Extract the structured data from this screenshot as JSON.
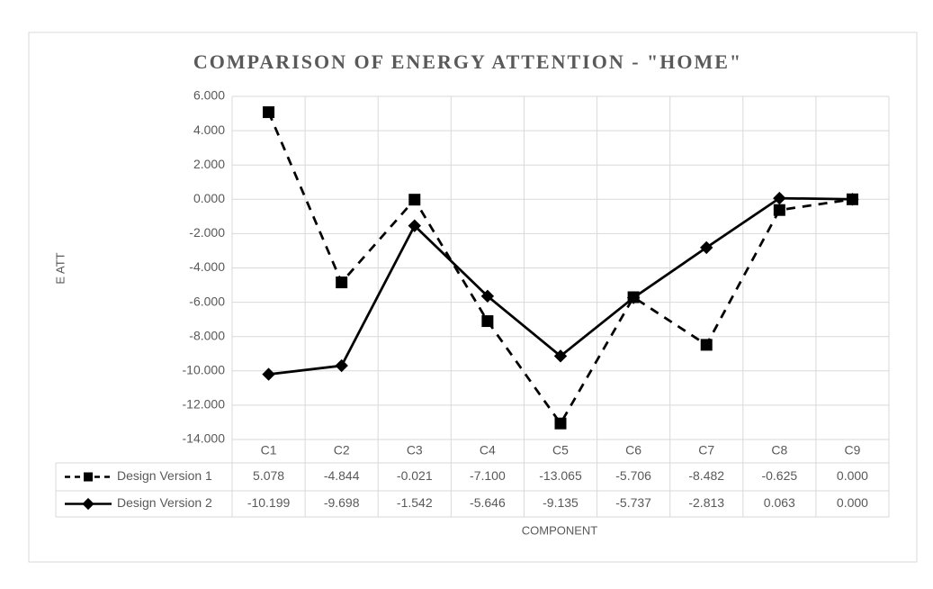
{
  "chart_data": {
    "type": "line",
    "title": "COMPARISON OF ENERGY ATTENTION - \"HOME\"",
    "x_label": "COMPONENT",
    "y_label": "E ATT",
    "categories": [
      "C1",
      "C2",
      "C3",
      "C4",
      "C5",
      "C6",
      "C7",
      "C8",
      "C9"
    ],
    "series": [
      {
        "name": "Design Version 1",
        "color": "#000000",
        "line_style": "dashed",
        "marker": "square",
        "values": [
          5.078,
          -4.844,
          -0.021,
          -7.1,
          -13.065,
          -5.706,
          -8.482,
          -0.625,
          0
        ],
        "value_labels": [
          "5.078",
          "-4.844",
          "-0.021",
          "-7.100",
          "-13.065",
          "-5.706",
          "-8.482",
          "-0.625",
          "0.000"
        ]
      },
      {
        "name": "Design Version 2",
        "color": "#000000",
        "line_style": "solid",
        "marker": "diamond",
        "values": [
          -10.199,
          -9.698,
          -1.542,
          -5.646,
          -9.135,
          -5.737,
          -2.813,
          0.063,
          0
        ],
        "value_labels": [
          "-10.199",
          "-9.698",
          "-1.542",
          "-5.646",
          "-9.135",
          "-5.737",
          "-2.813",
          "0.063",
          "0.000"
        ]
      }
    ],
    "ylim": [
      -14,
      6
    ],
    "yticks": [
      {
        "value": -14,
        "label": "-14.000"
      },
      {
        "value": -12,
        "label": "-12.000"
      },
      {
        "value": -10,
        "label": "-10.000"
      },
      {
        "value": -8,
        "label": "-8.000"
      },
      {
        "value": -6,
        "label": "-6.000"
      },
      {
        "value": -4,
        "label": "-4.000"
      },
      {
        "value": -2,
        "label": "-2.000"
      },
      {
        "value": 0,
        "label": "0.000"
      },
      {
        "value": 2,
        "label": "2.000"
      },
      {
        "value": 4,
        "label": "4.000"
      },
      {
        "value": 6,
        "label": "6.000"
      }
    ],
    "grid": true
  }
}
